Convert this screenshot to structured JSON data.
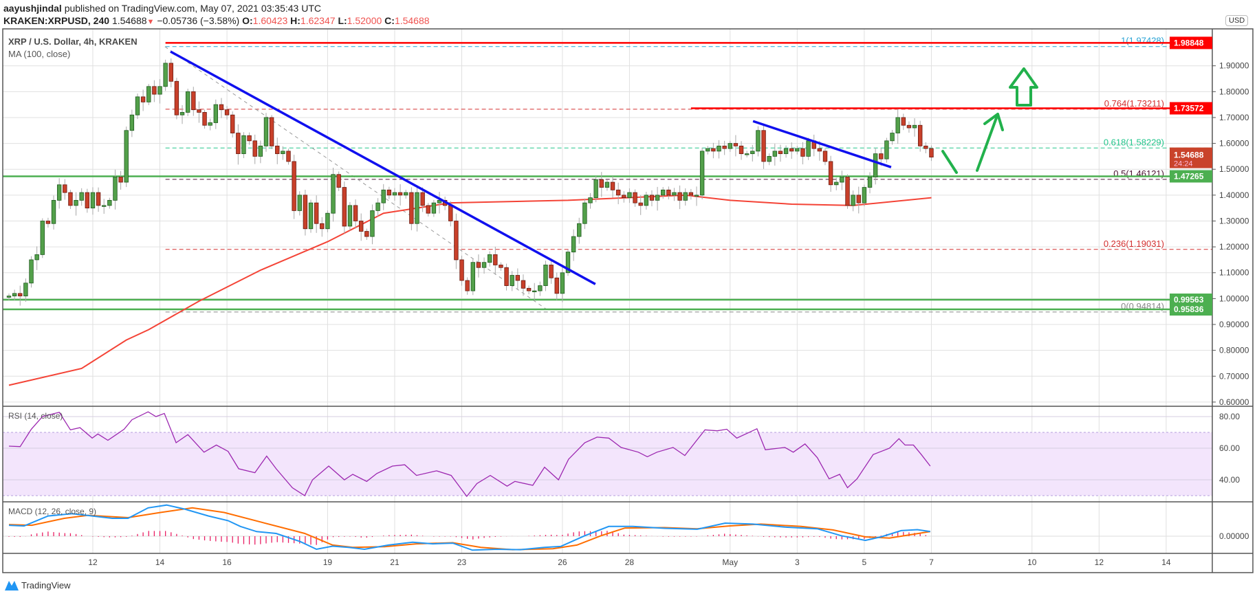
{
  "header": {
    "author": "aayushjindal",
    "published": " published on TradingView.com, May 07, 2021 03:35:43 UTC",
    "symbol": "KRAKEN:XRPUSD, 240",
    "last": "1.54688",
    "change": "−0.05736 (−3.58%)",
    "o_label": "O:",
    "o": "1.60423",
    "h_label": "H:",
    "h": "1.62347",
    "l_label": "L:",
    "l": "1.52000",
    "c_label": "C:",
    "c": "1.54688"
  },
  "legend": {
    "title": "XRP / U.S. Dollar, 4h, KRAKEN",
    "ma": "MA (100, close)",
    "rsi": "RSI (14, close)",
    "macd": "MACD (12, 26, close, 9)"
  },
  "currency": "USD",
  "footer": {
    "brand": "TradingView"
  },
  "colors": {
    "up": "#53a04a",
    "down": "#c8402a",
    "ma": "#f44336",
    "trend": "#1010ee",
    "rsi": "#9c27b0",
    "macd": "#2196f3",
    "signal": "#ff6d00",
    "hist": "#e91e63",
    "annot": "#22b14c"
  },
  "chart_data": {
    "type": "candlestick",
    "title": "XRP / U.S. Dollar, 4h, KRAKEN",
    "ylim": [
      0.58,
      2.0
    ],
    "price_ticks": [
      "1.90000",
      "1.80000",
      "1.70000",
      "1.60000",
      "1.50000",
      "1.40000",
      "1.30000",
      "1.20000",
      "1.10000",
      "1.00000",
      "0.90000",
      "0.80000",
      "0.70000",
      "0.60000"
    ],
    "x_ticks": [
      {
        "label": "12",
        "index": 15
      },
      {
        "label": "14",
        "index": 27
      },
      {
        "label": "16",
        "index": 39
      },
      {
        "label": "19",
        "index": 57
      },
      {
        "label": "21",
        "index": 69
      },
      {
        "label": "23",
        "index": 81
      },
      {
        "label": "26",
        "index": 99
      },
      {
        "label": "28",
        "index": 111
      },
      {
        "label": "May",
        "index": 129
      },
      {
        "label": "3",
        "index": 141
      },
      {
        "label": "5",
        "index": 153
      },
      {
        "label": "7",
        "index": 165
      },
      {
        "label": "10",
        "index": 183
      },
      {
        "label": "12",
        "index": 195
      },
      {
        "label": "14",
        "index": 207
      }
    ],
    "closes": [
      1.01,
      1.02,
      1.01,
      1.06,
      1.15,
      1.17,
      1.3,
      1.29,
      1.38,
      1.44,
      1.41,
      1.36,
      1.38,
      1.41,
      1.35,
      1.41,
      1.36,
      1.36,
      1.38,
      1.47,
      1.45,
      1.65,
      1.71,
      1.78,
      1.76,
      1.82,
      1.79,
      1.82,
      1.91,
      1.84,
      1.71,
      1.72,
      1.8,
      1.73,
      1.72,
      1.67,
      1.68,
      1.75,
      1.73,
      1.71,
      1.64,
      1.56,
      1.63,
      1.61,
      1.55,
      1.59,
      1.7,
      1.59,
      1.56,
      1.57,
      1.53,
      1.34,
      1.4,
      1.27,
      1.37,
      1.29,
      1.27,
      1.33,
      1.48,
      1.43,
      1.28,
      1.36,
      1.3,
      1.26,
      1.24,
      1.34,
      1.37,
      1.42,
      1.4,
      1.41,
      1.4,
      1.41,
      1.29,
      1.41,
      1.36,
      1.33,
      1.37,
      1.38,
      1.36,
      1.3,
      1.15,
      1.07,
      1.03,
      1.14,
      1.12,
      1.14,
      1.17,
      1.13,
      1.12,
      1.05,
      1.09,
      1.07,
      1.04,
      1.03,
      1.03,
      1.05,
      1.13,
      1.08,
      1.02,
      1.1,
      1.18,
      1.24,
      1.29,
      1.37,
      1.39,
      1.46,
      1.43,
      1.45,
      1.42,
      1.4,
      1.39,
      1.41,
      1.37,
      1.36,
      1.4,
      1.38,
      1.4,
      1.42,
      1.4,
      1.41,
      1.38,
      1.41,
      1.4,
      1.4,
      1.57,
      1.58,
      1.57,
      1.59,
      1.58,
      1.6,
      1.59,
      1.56,
      1.56,
      1.57,
      1.65,
      1.53,
      1.55,
      1.57,
      1.56,
      1.58,
      1.57,
      1.58,
      1.55,
      1.61,
      1.58,
      1.57,
      1.53,
      1.44,
      1.45,
      1.47,
      1.36,
      1.4,
      1.37,
      1.43,
      1.47,
      1.56,
      1.54,
      1.61,
      1.64,
      1.7,
      1.67,
      1.66,
      1.67,
      1.59,
      1.58,
      1.54688
    ],
    "first_open": 1.005,
    "ma100": [
      [
        0,
        0.665
      ],
      [
        13,
        0.73
      ],
      [
        21,
        0.84
      ],
      [
        25,
        0.88
      ],
      [
        34,
        0.99
      ],
      [
        45,
        1.11
      ],
      [
        57,
        1.22
      ],
      [
        67,
        1.33
      ],
      [
        79,
        1.37
      ],
      [
        100,
        1.38
      ],
      [
        121,
        1.4
      ],
      [
        129,
        1.38
      ],
      [
        140,
        1.365
      ],
      [
        151,
        1.36
      ],
      [
        165,
        1.39
      ]
    ],
    "fib_levels": [
      {
        "label": "1(1.97428)",
        "value": 1.97428,
        "color": "#29a3d4"
      },
      {
        "label": "0.764(1.73211)",
        "value": 1.73211,
        "color": "#d32f2f"
      },
      {
        "label": "0.618(1.58229)",
        "value": 1.58229,
        "color": "#22c58b"
      },
      {
        "label": "0.5(1.46121)",
        "value": 1.46121,
        "color": "#4a1030"
      },
      {
        "label": "0.236(1.19031)",
        "value": 1.19031,
        "color": "#d32f2f"
      },
      {
        "label": "0(0.94814)",
        "value": 0.94814,
        "color": "#888888"
      }
    ],
    "fib_start_index": 28,
    "fib_diagonal": [
      [
        27.9,
        1.974
      ],
      [
        96.2,
        0.958
      ]
    ],
    "hlines": [
      {
        "label": "1.98848",
        "value": 1.98848,
        "color": "#ff0000",
        "from_index": 28
      },
      {
        "label": "1.73572",
        "value": 1.73572,
        "color": "#ff0000",
        "from_index": 122
      },
      {
        "label": "1.47265",
        "value": 1.47265,
        "color": "#4caf50",
        "from_index": -1
      },
      {
        "label": "0.99563",
        "value": 0.99563,
        "color": "#4caf50",
        "from_index": -1
      },
      {
        "label": "0.95836",
        "value": 0.95836,
        "color": "#4caf50",
        "from_index": -1
      }
    ],
    "current_price": {
      "label": "1.54688",
      "countdown": "24:24",
      "value": 1.54688,
      "color": "#c9432b"
    },
    "trendlines": [
      [
        [
          28.9,
          1.955
        ],
        [
          104.9,
          1.056
        ]
      ],
      [
        [
          133.1,
          1.686
        ],
        [
          157.8,
          1.508
        ]
      ]
    ],
    "rsi": {
      "ticks": [
        "80.00",
        "60.00",
        "40.00"
      ],
      "band": [
        30,
        70
      ],
      "values": [
        [
          0,
          61.3
        ],
        [
          2,
          61
        ],
        [
          4,
          72
        ],
        [
          6,
          80
        ],
        [
          9,
          82.7
        ],
        [
          11,
          71.6
        ],
        [
          12.7,
          73
        ],
        [
          14.9,
          66.4
        ],
        [
          15.9,
          69
        ],
        [
          17.7,
          65
        ],
        [
          20.6,
          72
        ],
        [
          22,
          78
        ],
        [
          24.9,
          83
        ],
        [
          26.3,
          80
        ],
        [
          27.8,
          82
        ],
        [
          29.9,
          63.5
        ],
        [
          32,
          68.6
        ],
        [
          34.9,
          57.5
        ],
        [
          37.1,
          62
        ],
        [
          39.2,
          58
        ],
        [
          41.1,
          47
        ],
        [
          44,
          44.5
        ],
        [
          46.1,
          55
        ],
        [
          47.8,
          47
        ],
        [
          50.7,
          35
        ],
        [
          52.9,
          30
        ],
        [
          54.3,
          40
        ],
        [
          57.2,
          48.7
        ],
        [
          60,
          40
        ],
        [
          61.5,
          43.5
        ],
        [
          64,
          39
        ],
        [
          65.8,
          44
        ],
        [
          68.6,
          48.7
        ],
        [
          70.8,
          49.5
        ],
        [
          72.9,
          42.8
        ],
        [
          76.5,
          45.7
        ],
        [
          79.1,
          42.8
        ],
        [
          81.9,
          29.5
        ],
        [
          83.7,
          37.6
        ],
        [
          86.1,
          42.8
        ],
        [
          89.1,
          36
        ],
        [
          90.5,
          39
        ],
        [
          93.7,
          36.5
        ],
        [
          95.8,
          48
        ],
        [
          98.3,
          40
        ],
        [
          100.1,
          53
        ],
        [
          103,
          63.5
        ],
        [
          105.2,
          67
        ],
        [
          107.3,
          66.4
        ],
        [
          109.5,
          60.5
        ],
        [
          112.6,
          57.5
        ],
        [
          114.2,
          54.6
        ],
        [
          115.9,
          57.5
        ],
        [
          118.8,
          60.5
        ],
        [
          120.9,
          55.4
        ],
        [
          124.5,
          71.6
        ],
        [
          126.7,
          71
        ],
        [
          128.4,
          72
        ],
        [
          130.2,
          66.4
        ],
        [
          133.8,
          72.3
        ],
        [
          135.3,
          59
        ],
        [
          138.8,
          60.5
        ],
        [
          140.3,
          57.5
        ],
        [
          142.4,
          62.7
        ],
        [
          144.6,
          54
        ],
        [
          146.7,
          40.6
        ],
        [
          148.6,
          43.5
        ],
        [
          150,
          35
        ],
        [
          151.7,
          40.6
        ],
        [
          154.6,
          56
        ],
        [
          157.5,
          60
        ],
        [
          159.2,
          66
        ],
        [
          160.3,
          62
        ],
        [
          161.8,
          62
        ],
        [
          163.2,
          56
        ],
        [
          164.8,
          48.7
        ]
      ]
    },
    "macd": {
      "ticks": [
        "0.00000"
      ],
      "macd": [
        [
          0,
          0.0318
        ],
        [
          2.7,
          0.0297
        ],
        [
          7,
          0.0588
        ],
        [
          11.3,
          0.0656
        ],
        [
          14.9,
          0.0588
        ],
        [
          18.5,
          0.0521
        ],
        [
          21.3,
          0.0521
        ],
        [
          24.9,
          0.0825
        ],
        [
          28.2,
          0.0906
        ],
        [
          31.4,
          0.0791
        ],
        [
          35.7,
          0.0588
        ],
        [
          39.2,
          0.0453
        ],
        [
          41.4,
          0.0284
        ],
        [
          44.3,
          0.0135
        ],
        [
          47.8,
          0.0081
        ],
        [
          52.1,
          -0.0155
        ],
        [
          55,
          -0.0379
        ],
        [
          57.9,
          -0.0291
        ],
        [
          60.7,
          -0.0324
        ],
        [
          63.6,
          -0.0379
        ],
        [
          67.9,
          -0.0257
        ],
        [
          72.2,
          -0.0176
        ],
        [
          75.8,
          -0.0223
        ],
        [
          79.4,
          -0.0203
        ],
        [
          82.9,
          -0.0406
        ],
        [
          87.2,
          -0.0379
        ],
        [
          91.5,
          -0.0392
        ],
        [
          95.8,
          -0.0324
        ],
        [
          98.7,
          -0.0297
        ],
        [
          103,
          0.0014
        ],
        [
          107.3,
          0.0284
        ],
        [
          111.6,
          0.0284
        ],
        [
          117.3,
          0.023
        ],
        [
          123.1,
          0.0203
        ],
        [
          128.1,
          0.0379
        ],
        [
          133.1,
          0.0352
        ],
        [
          138.8,
          0.0264
        ],
        [
          144.6,
          0.0216
        ],
        [
          148.9,
          0.0014
        ],
        [
          153.2,
          -0.0122
        ],
        [
          156,
          -0.002
        ],
        [
          159.6,
          0.0162
        ],
        [
          162.5,
          0.0189
        ],
        [
          164.8,
          0.0135
        ]
      ],
      "signal": [
        [
          0,
          0.0338
        ],
        [
          4.1,
          0.0318
        ],
        [
          9.9,
          0.0521
        ],
        [
          14.2,
          0.0608
        ],
        [
          21.3,
          0.0541
        ],
        [
          27.1,
          0.069
        ],
        [
          32.8,
          0.0825
        ],
        [
          38.5,
          0.069
        ],
        [
          45.7,
          0.0385
        ],
        [
          52.9,
          0.0081
        ],
        [
          57.9,
          -0.0257
        ],
        [
          61.5,
          -0.0324
        ],
        [
          67.2,
          -0.0304
        ],
        [
          72.9,
          -0.0223
        ],
        [
          79.4,
          -0.0189
        ],
        [
          84.4,
          -0.0324
        ],
        [
          90.1,
          -0.0392
        ],
        [
          97.3,
          -0.0365
        ],
        [
          101.6,
          -0.0257
        ],
        [
          105.9,
          0.0014
        ],
        [
          110.2,
          0.0237
        ],
        [
          117.3,
          0.025
        ],
        [
          123.1,
          0.0216
        ],
        [
          128.8,
          0.0297
        ],
        [
          134.5,
          0.0352
        ],
        [
          141.7,
          0.0284
        ],
        [
          147.4,
          0.0183
        ],
        [
          153.2,
          -0.002
        ],
        [
          157.5,
          -0.0054
        ],
        [
          164.8,
          0.0135
        ]
      ]
    }
  }
}
